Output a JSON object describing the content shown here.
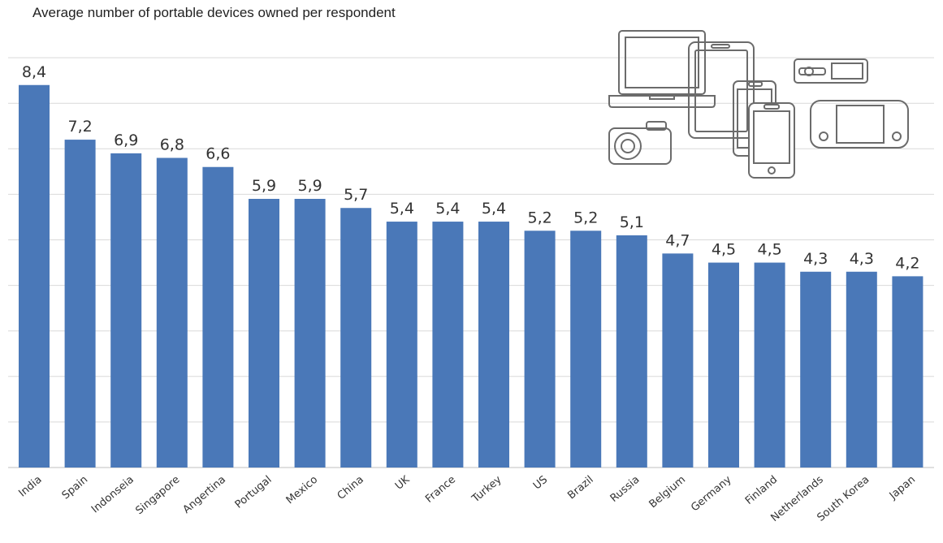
{
  "chart_data": {
    "type": "bar",
    "title": "Average number of portable devices owned per respondent",
    "categories": [
      "India",
      "Spain",
      "Indonseia",
      "Singapore",
      "Angertina",
      "Portugal",
      "Mexico",
      "China",
      "UK",
      "France",
      "Turkey",
      "US",
      "Brazil",
      "Russia",
      "Belgium",
      "Germany",
      "Finland",
      "Netherlands",
      "South Korea",
      "Japan"
    ],
    "values": [
      8.4,
      7.2,
      6.9,
      6.8,
      6.6,
      5.9,
      5.9,
      5.7,
      5.4,
      5.4,
      5.4,
      5.2,
      5.2,
      5.1,
      4.7,
      4.5,
      4.5,
      4.3,
      4.3,
      4.2
    ],
    "value_labels": [
      "8,4",
      "7,2",
      "6,9",
      "6,8",
      "6,6",
      "5,9",
      "5,9",
      "5,7",
      "5,4",
      "5,4",
      "5,4",
      "5,2",
      "5,2",
      "5,1",
      "4,7",
      "4,5",
      "4,5",
      "4,3",
      "4,3",
      "4,2"
    ],
    "ylim": [
      0,
      9
    ],
    "grid": true,
    "bar_color": "#4a78b8",
    "grid_color": "#d9d9d9"
  },
  "illustration": {
    "icons": [
      "laptop-icon",
      "tablet-icon",
      "smartphone-icon",
      "camera-icon",
      "media-player-icon",
      "handheld-console-icon"
    ]
  }
}
